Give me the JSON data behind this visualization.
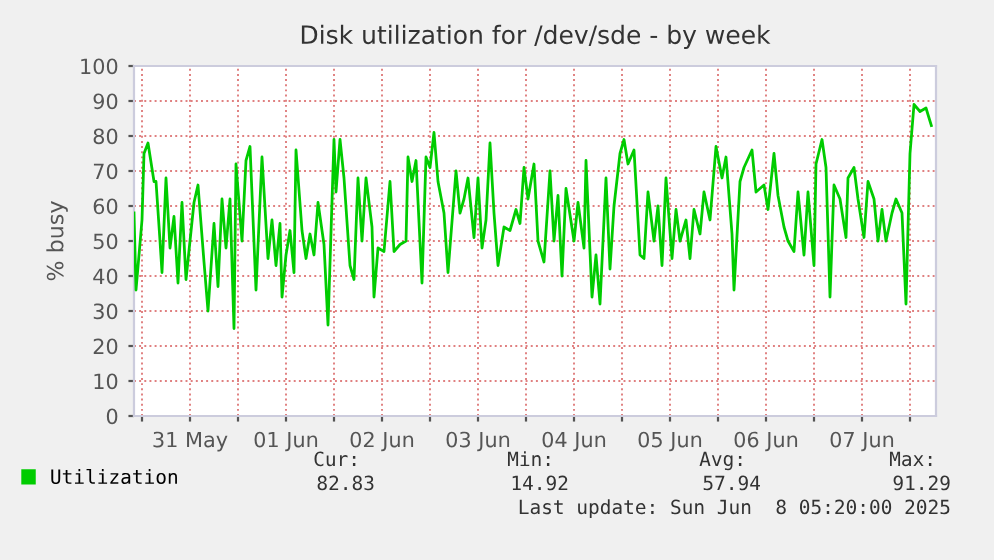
{
  "chart_data": {
    "type": "line",
    "title": "Disk utilization for /dev/sde - by week",
    "ylabel": "% busy",
    "xlim": [
      "2025-05-30T22:00",
      "2025-06-08T06:30"
    ],
    "ylim": [
      0,
      100
    ],
    "xticks": [
      {
        "value": "2025-05-31T00:00",
        "label": null
      },
      {
        "value": "2025-05-31T12:00",
        "label": "31 May"
      },
      {
        "value": "2025-06-01T00:00",
        "label": null
      },
      {
        "value": "2025-06-01T12:00",
        "label": "01 Jun"
      },
      {
        "value": "2025-06-02T00:00",
        "label": null
      },
      {
        "value": "2025-06-02T12:00",
        "label": "02 Jun"
      },
      {
        "value": "2025-06-03T00:00",
        "label": null
      },
      {
        "value": "2025-06-03T12:00",
        "label": "03 Jun"
      },
      {
        "value": "2025-06-04T00:00",
        "label": null
      },
      {
        "value": "2025-06-04T12:00",
        "label": "04 Jun"
      },
      {
        "value": "2025-06-05T00:00",
        "label": null
      },
      {
        "value": "2025-06-05T12:00",
        "label": "05 Jun"
      },
      {
        "value": "2025-06-06T00:00",
        "label": null
      },
      {
        "value": "2025-06-06T12:00",
        "label": "06 Jun"
      },
      {
        "value": "2025-06-07T00:00",
        "label": null
      },
      {
        "value": "2025-06-07T12:00",
        "label": "07 Jun"
      },
      {
        "value": "2025-06-08T00:00",
        "label": null
      }
    ],
    "yticks": [
      0,
      10,
      20,
      30,
      40,
      50,
      60,
      70,
      80,
      90,
      100
    ],
    "grid": true,
    "legend": "bottom",
    "marker": "none",
    "line_style": "solid",
    "series": [
      {
        "name": "Utilization",
        "color": "#00cc00",
        "x": [
          "2025-05-30T22:00",
          "2025-05-30T22:30",
          "2025-05-31T00:00",
          "2025-05-31T00:30",
          "2025-05-31T01:30",
          "2025-05-31T03:00",
          "2025-05-31T03:30",
          "2025-05-31T04:30",
          "2025-05-31T05:00",
          "2025-05-31T06:00",
          "2025-05-31T07:00",
          "2025-05-31T08:00",
          "2025-05-31T09:00",
          "2025-05-31T10:00",
          "2025-05-31T11:00",
          "2025-05-31T13:00",
          "2025-05-31T14:00",
          "2025-05-31T15:30",
          "2025-05-31T16:30",
          "2025-05-31T18:00",
          "2025-05-31T19:00",
          "2025-05-31T20:00",
          "2025-05-31T21:00",
          "2025-05-31T22:00",
          "2025-05-31T23:00",
          "2025-05-31T23:30",
          "2025-06-01T01:00",
          "2025-06-01T02:00",
          "2025-06-01T03:00",
          "2025-06-01T04:30",
          "2025-06-01T06:00",
          "2025-06-01T07:30",
          "2025-06-01T08:30",
          "2025-06-01T09:30",
          "2025-06-01T10:30",
          "2025-06-01T11:00",
          "2025-06-01T12:00",
          "2025-06-01T13:00",
          "2025-06-01T14:00",
          "2025-06-01T14:30",
          "2025-06-01T16:00",
          "2025-06-01T17:00",
          "2025-06-01T18:00",
          "2025-06-01T19:00",
          "2025-06-01T20:00",
          "2025-06-01T21:30",
          "2025-06-01T22:30",
          "2025-06-02T00:00",
          "2025-06-02T00:30",
          "2025-06-02T01:30",
          "2025-06-02T02:30",
          "2025-06-02T04:00",
          "2025-06-02T05:00",
          "2025-06-02T06:00",
          "2025-06-02T07:00",
          "2025-06-02T08:00",
          "2025-06-02T09:30",
          "2025-06-02T10:00",
          "2025-06-02T11:00",
          "2025-06-02T12:30",
          "2025-06-02T14:00",
          "2025-06-02T15:00",
          "2025-06-02T16:30",
          "2025-06-02T18:00",
          "2025-06-02T18:30",
          "2025-06-02T19:30",
          "2025-06-02T20:30",
          "2025-06-02T22:00",
          "2025-06-02T23:00",
          "2025-06-03T00:00",
          "2025-06-03T01:00",
          "2025-06-03T02:00",
          "2025-06-03T03:30",
          "2025-06-03T04:30",
          "2025-06-03T06:30",
          "2025-06-03T07:30",
          "2025-06-03T08:30",
          "2025-06-03T09:30",
          "2025-06-03T11:00",
          "2025-06-03T12:00",
          "2025-06-03T13:00",
          "2025-06-03T14:00",
          "2025-06-03T15:00",
          "2025-06-03T16:00",
          "2025-06-03T17:00",
          "2025-06-03T18:30",
          "2025-06-03T20:00",
          "2025-06-03T21:30",
          "2025-06-03T22:30",
          "2025-06-03T23:30",
          "2025-06-04T00:30",
          "2025-06-04T02:00",
          "2025-06-04T03:00",
          "2025-06-04T04:30",
          "2025-06-04T06:00",
          "2025-06-04T07:00",
          "2025-06-04T08:00",
          "2025-06-04T09:00",
          "2025-06-04T10:00",
          "2025-06-04T12:00",
          "2025-06-04T13:00",
          "2025-06-04T14:30",
          "2025-06-04T15:00",
          "2025-06-04T16:30",
          "2025-06-04T17:30",
          "2025-06-04T18:30",
          "2025-06-04T20:00",
          "2025-06-04T21:00",
          "2025-06-04T22:00",
          "2025-06-04T23:30",
          "2025-06-05T00:30",
          "2025-06-05T01:30",
          "2025-06-05T03:00",
          "2025-06-05T04:30",
          "2025-06-05T05:30",
          "2025-06-05T06:30",
          "2025-06-05T08:00",
          "2025-06-05T09:00",
          "2025-06-05T10:00",
          "2025-06-05T11:00",
          "2025-06-05T12:30",
          "2025-06-05T13:30",
          "2025-06-05T14:30",
          "2025-06-05T16:00",
          "2025-06-05T17:00",
          "2025-06-05T18:00",
          "2025-06-05T19:30",
          "2025-06-05T20:30",
          "2025-06-05T22:00",
          "2025-06-05T23:30",
          "2025-06-06T01:00",
          "2025-06-06T02:00",
          "2025-06-06T03:30",
          "2025-06-06T04:00",
          "2025-06-06T05:30",
          "2025-06-06T06:30",
          "2025-06-06T08:30",
          "2025-06-06T09:30",
          "2025-06-06T11:30",
          "2025-06-06T12:30",
          "2025-06-06T14:00",
          "2025-06-06T15:00",
          "2025-06-06T16:30",
          "2025-06-06T17:30",
          "2025-06-06T19:00",
          "2025-06-06T20:00",
          "2025-06-06T21:30",
          "2025-06-06T22:30",
          "2025-06-07T00:00",
          "2025-06-07T00:30",
          "2025-06-07T02:00",
          "2025-06-07T03:00",
          "2025-06-07T04:00",
          "2025-06-07T05:00",
          "2025-06-07T06:30",
          "2025-06-07T08:00",
          "2025-06-07T08:30",
          "2025-06-07T10:00",
          "2025-06-07T11:00",
          "2025-06-07T12:30",
          "2025-06-07T13:30",
          "2025-06-07T15:00",
          "2025-06-07T16:00",
          "2025-06-07T17:00",
          "2025-06-07T18:00",
          "2025-06-07T19:30",
          "2025-06-07T20:30",
          "2025-06-07T22:00",
          "2025-06-07T23:00",
          "2025-06-08T00:00",
          "2025-06-08T01:00",
          "2025-06-08T02:30",
          "2025-06-08T04:00",
          "2025-06-08T05:20"
        ],
        "values": [
          58,
          36,
          56,
          75,
          78,
          67,
          67,
          50,
          41,
          68,
          48,
          57,
          38,
          61,
          39,
          61,
          66,
          44,
          30,
          55,
          37,
          62,
          48,
          62,
          25,
          72,
          50,
          73,
          77,
          36,
          74,
          45,
          56,
          43,
          55,
          34,
          46,
          53,
          41,
          76,
          53,
          45,
          52,
          46,
          61,
          49,
          26,
          79,
          64,
          79,
          68,
          43,
          39,
          68,
          50,
          68,
          54,
          34,
          48,
          47,
          67,
          47,
          49,
          50,
          74,
          67,
          73,
          38,
          74,
          71,
          81,
          67,
          58,
          41,
          70,
          58,
          62,
          68,
          51,
          68,
          48,
          56,
          78,
          58,
          43,
          54,
          53,
          59,
          55,
          71,
          62,
          72,
          50,
          44,
          70,
          50,
          63,
          40,
          65,
          50,
          61,
          48,
          73,
          34,
          46,
          32,
          68,
          42,
          60,
          75,
          79,
          72,
          76,
          46,
          45,
          64,
          50,
          60,
          43,
          68,
          45,
          59,
          50,
          56,
          45,
          59,
          52,
          64,
          56,
          77,
          68,
          74,
          52,
          36,
          67,
          71,
          76,
          64,
          66,
          59,
          75,
          63,
          54,
          50,
          47,
          64,
          46,
          64,
          43,
          72,
          79,
          71,
          34,
          66,
          62,
          51,
          68,
          71,
          62,
          51,
          67,
          62,
          50,
          59,
          50,
          58,
          62,
          58,
          32,
          75,
          89,
          87,
          88,
          83
        ]
      }
    ],
    "annotations": [
      "Cur:",
      "Min:",
      "Avg:",
      "Max:",
      "82.83",
      "14.92",
      "57.94",
      "91.29",
      "Last update: Sun Jun  8 05:20:00 2025"
    ]
  }
}
